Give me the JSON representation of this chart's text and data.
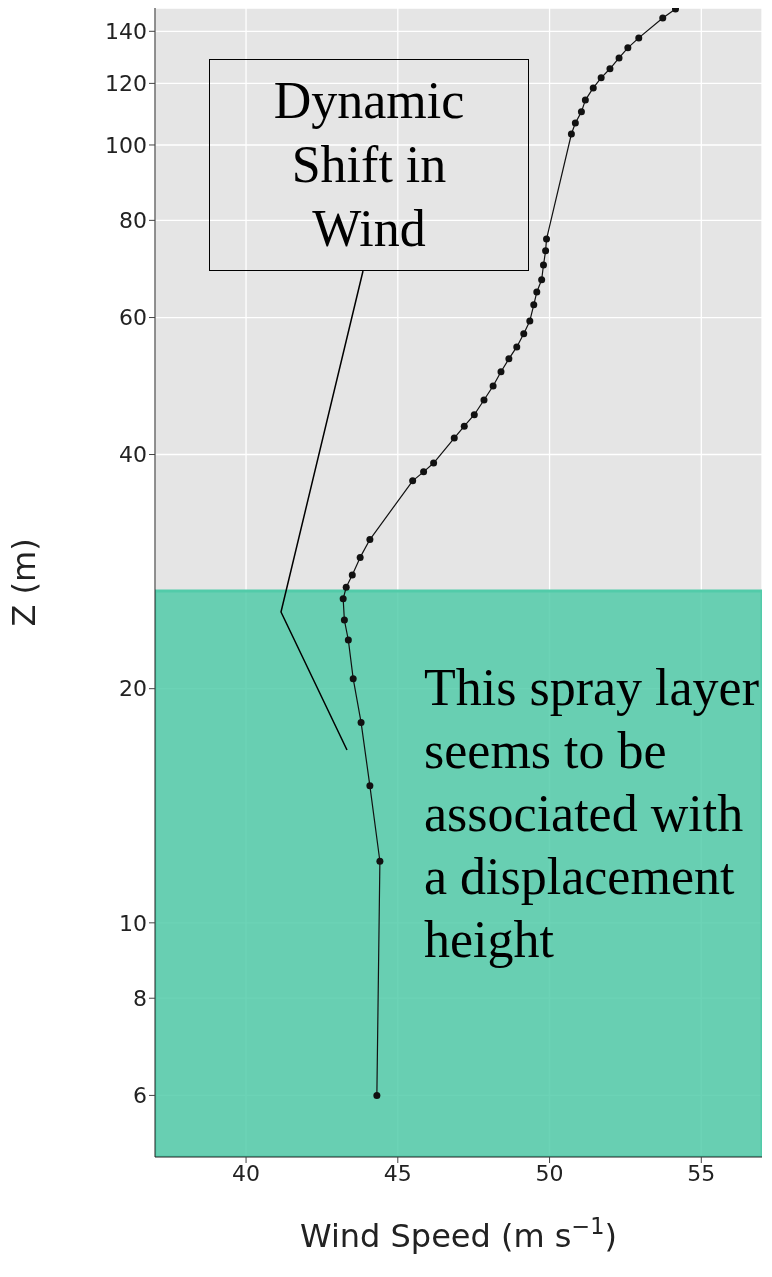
{
  "chart_data": {
    "type": "line",
    "xlabel": "Wind Speed (m s$^{−1}$)",
    "ylabel": "Z (m)",
    "x": [
      44.31,
      44.41,
      44.08,
      43.79,
      43.53,
      43.37,
      43.24,
      43.2,
      43.3,
      43.5,
      43.76,
      44.08,
      45.49,
      45.85,
      46.18,
      46.86,
      47.19,
      47.52,
      47.84,
      48.14,
      48.4,
      48.66,
      48.92,
      49.15,
      49.35,
      49.48,
      49.58,
      49.74,
      49.8,
      49.87,
      49.9,
      50.72,
      50.85,
      51.05,
      51.18,
      51.44,
      51.7,
      51.99,
      52.29,
      52.58,
      52.94,
      53.73,
      54.15
    ],
    "series": [
      {
        "color": "#111111",
        "values": [
          6.0,
          12.0,
          15.0,
          18.1,
          20.6,
          23.1,
          24.5,
          26.1,
          27.0,
          28.0,
          29.5,
          31.1,
          37.0,
          38.0,
          39.0,
          42.0,
          43.5,
          45.0,
          47.0,
          49.0,
          51.1,
          53.1,
          55.0,
          57.2,
          59.4,
          62.3,
          64.7,
          67.1,
          70.1,
          73.1,
          75.7,
          103.3,
          106.7,
          110.3,
          114.2,
          118.4,
          122.0,
          125.3,
          129.4,
          133.3,
          137.3,
          145.6,
          149.6
        ]
      }
    ],
    "marker": "circle",
    "log": "y",
    "grid": true,
    "xlim": [
      37,
      57
    ],
    "xticks": [
      40,
      45,
      50,
      55
    ],
    "ylim": [
      5,
      150
    ],
    "yticks": [
      6,
      8,
      10,
      20,
      40,
      60,
      80,
      100,
      120,
      140
    ],
    "bands": [
      {
        "axis": "y",
        "from": 5,
        "to": 26.7,
        "color": "#52cba9"
      }
    ],
    "annotations": [
      "Dynamic Shift in Wind",
      "This spray layer seems to be associated with a displacement height"
    ]
  }
}
